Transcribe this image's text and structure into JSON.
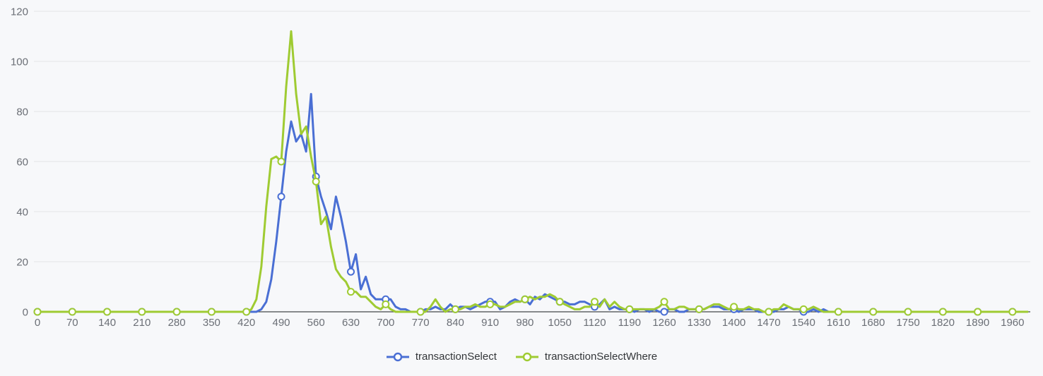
{
  "chart": {
    "background": "#f7f8fa",
    "grid_color": "#e3e4e6",
    "axis_line_color": "#44474b",
    "tick_label_color": "#6b6f76",
    "legend_text_color": "#333639",
    "marker_fill": "#ffffff"
  },
  "chart_data": {
    "type": "line",
    "title": "",
    "xlabel": "",
    "ylabel": "",
    "grid": true,
    "legend_position": "bottom",
    "xlim": [
      0,
      2000
    ],
    "ylim": [
      0,
      120
    ],
    "x_start": 0,
    "x_step": 10,
    "marker_x_interval": 70,
    "x_ticks": [
      0,
      70,
      140,
      210,
      280,
      350,
      420,
      490,
      560,
      630,
      700,
      770,
      840,
      910,
      980,
      1050,
      1120,
      1190,
      1260,
      1330,
      1400,
      1470,
      1540,
      1610,
      1680,
      1750,
      1820,
      1890,
      1960
    ],
    "y_ticks": [
      0,
      20,
      40,
      60,
      80,
      100,
      120
    ],
    "series": [
      {
        "name": "transactionSelect",
        "color": "#4a6fd4",
        "values": [
          0,
          0,
          0,
          0,
          0,
          0,
          0,
          0,
          0,
          0,
          0,
          0,
          0,
          0,
          0,
          0,
          0,
          0,
          0,
          0,
          0,
          0,
          0,
          0,
          0,
          0,
          0,
          0,
          0,
          0,
          0,
          0,
          0,
          0,
          0,
          0,
          0,
          0,
          0,
          0,
          0,
          0,
          0,
          0,
          0,
          1,
          4,
          13,
          28,
          46,
          64,
          76,
          68,
          71,
          64,
          87,
          54,
          46,
          40,
          33,
          46,
          38,
          28,
          16,
          23,
          9,
          14,
          7,
          5,
          5,
          5,
          5,
          2,
          1,
          1,
          0,
          0,
          0,
          1,
          1,
          2,
          1,
          1,
          3,
          1,
          2,
          2,
          1,
          2,
          3,
          4,
          4,
          4,
          1,
          2,
          4,
          5,
          4,
          5,
          3,
          6,
          5,
          7,
          6,
          5,
          4,
          4,
          3,
          3,
          4,
          4,
          3,
          2,
          3,
          5,
          1,
          2,
          1,
          1,
          1,
          0,
          1,
          1,
          0,
          1,
          0,
          0,
          1,
          1,
          0,
          0,
          1,
          1,
          1,
          1,
          2,
          2,
          2,
          1,
          1,
          1,
          0,
          1,
          1,
          1,
          0,
          0,
          0,
          0,
          1,
          1,
          2,
          1,
          1,
          0,
          0,
          1,
          0,
          1,
          0,
          0,
          0,
          0,
          0,
          0,
          0,
          0,
          0,
          0,
          0,
          0,
          0,
          0,
          0,
          0,
          0,
          0,
          0,
          0,
          0,
          0,
          0,
          0,
          0,
          0,
          0,
          0,
          0,
          0,
          0,
          0,
          0,
          0,
          0,
          0,
          0,
          0,
          0,
          0,
          0
        ]
      },
      {
        "name": "transactionSelectWhere",
        "color": "#9fcb32",
        "values": [
          0,
          0,
          0,
          0,
          0,
          0,
          0,
          0,
          0,
          0,
          0,
          0,
          0,
          0,
          0,
          0,
          0,
          0,
          0,
          0,
          0,
          0,
          0,
          0,
          0,
          0,
          0,
          0,
          0,
          0,
          0,
          0,
          0,
          0,
          0,
          0,
          0,
          0,
          0,
          0,
          0,
          0,
          0,
          1,
          5,
          18,
          42,
          61,
          62,
          60,
          90,
          112,
          87,
          71,
          74,
          62,
          52,
          35,
          38,
          26,
          17,
          14,
          12,
          8,
          8,
          6,
          6,
          4,
          2,
          1,
          3,
          1,
          0,
          0,
          0,
          0,
          0,
          0,
          0,
          2,
          5,
          2,
          0,
          1,
          1,
          1,
          2,
          2,
          3,
          2,
          2,
          3,
          3,
          2,
          2,
          3,
          4,
          4,
          5,
          6,
          5,
          6,
          6,
          7,
          6,
          4,
          3,
          2,
          1,
          1,
          2,
          2,
          4,
          2,
          5,
          2,
          4,
          2,
          1,
          1,
          1,
          1,
          1,
          1,
          1,
          2,
          4,
          1,
          1,
          2,
          2,
          1,
          1,
          1,
          1,
          2,
          3,
          3,
          2,
          1,
          2,
          1,
          1,
          2,
          1,
          1,
          0,
          0,
          1,
          1,
          3,
          2,
          1,
          1,
          1,
          1,
          2,
          1,
          0,
          0,
          0,
          0,
          0,
          0,
          0,
          0,
          0,
          0,
          0,
          0,
          0,
          0,
          0,
          0,
          0,
          0,
          0,
          0,
          0,
          0,
          0,
          0,
          0,
          0,
          0,
          0,
          0,
          0,
          0,
          0,
          0,
          0,
          0,
          0,
          0,
          0,
          0,
          0,
          0,
          0
        ]
      }
    ]
  }
}
